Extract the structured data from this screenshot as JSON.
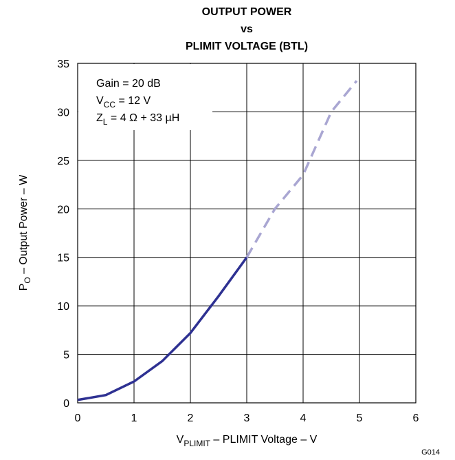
{
  "chart_data": {
    "type": "line",
    "title": [
      "OUTPUT POWER",
      "vs",
      "PLIMIT VOLTAGE (BTL)"
    ],
    "xlabel": {
      "main": "V",
      "sub": "PLIMIT",
      "rest": " – PLIMIT Voltage – V"
    },
    "ylabel": {
      "main": "P",
      "sub": "O",
      "rest": " – Output Power – W"
    },
    "annotations": [
      {
        "main": "Gain = 20 dB",
        "sub": "",
        "rest": ""
      },
      {
        "main": "V",
        "sub": "CC",
        "rest": " = 12 V"
      },
      {
        "main": "Z",
        "sub": "L",
        "rest": " = 4 Ω + 33 µH"
      }
    ],
    "figure_id": "G014",
    "xlim": [
      0,
      6
    ],
    "xticks": [
      0,
      1,
      2,
      3,
      4,
      5,
      6
    ],
    "ylim": [
      0,
      35
    ],
    "yticks": [
      0,
      5,
      10,
      15,
      20,
      25,
      30,
      35
    ],
    "grid": true,
    "series": [
      {
        "color": "#2e3192",
        "dashed": false,
        "x": [
          0,
          0.5,
          1,
          1.5,
          2,
          2.5,
          3
        ],
        "values": [
          0.3,
          0.8,
          2.2,
          4.3,
          7.2,
          11,
          15
        ]
      },
      {
        "color": "#a9a6d2",
        "dashed": true,
        "x": [
          3,
          3.5,
          4,
          4.5,
          4.95
        ],
        "values": [
          15,
          20,
          23.5,
          30,
          33.2
        ]
      }
    ]
  }
}
